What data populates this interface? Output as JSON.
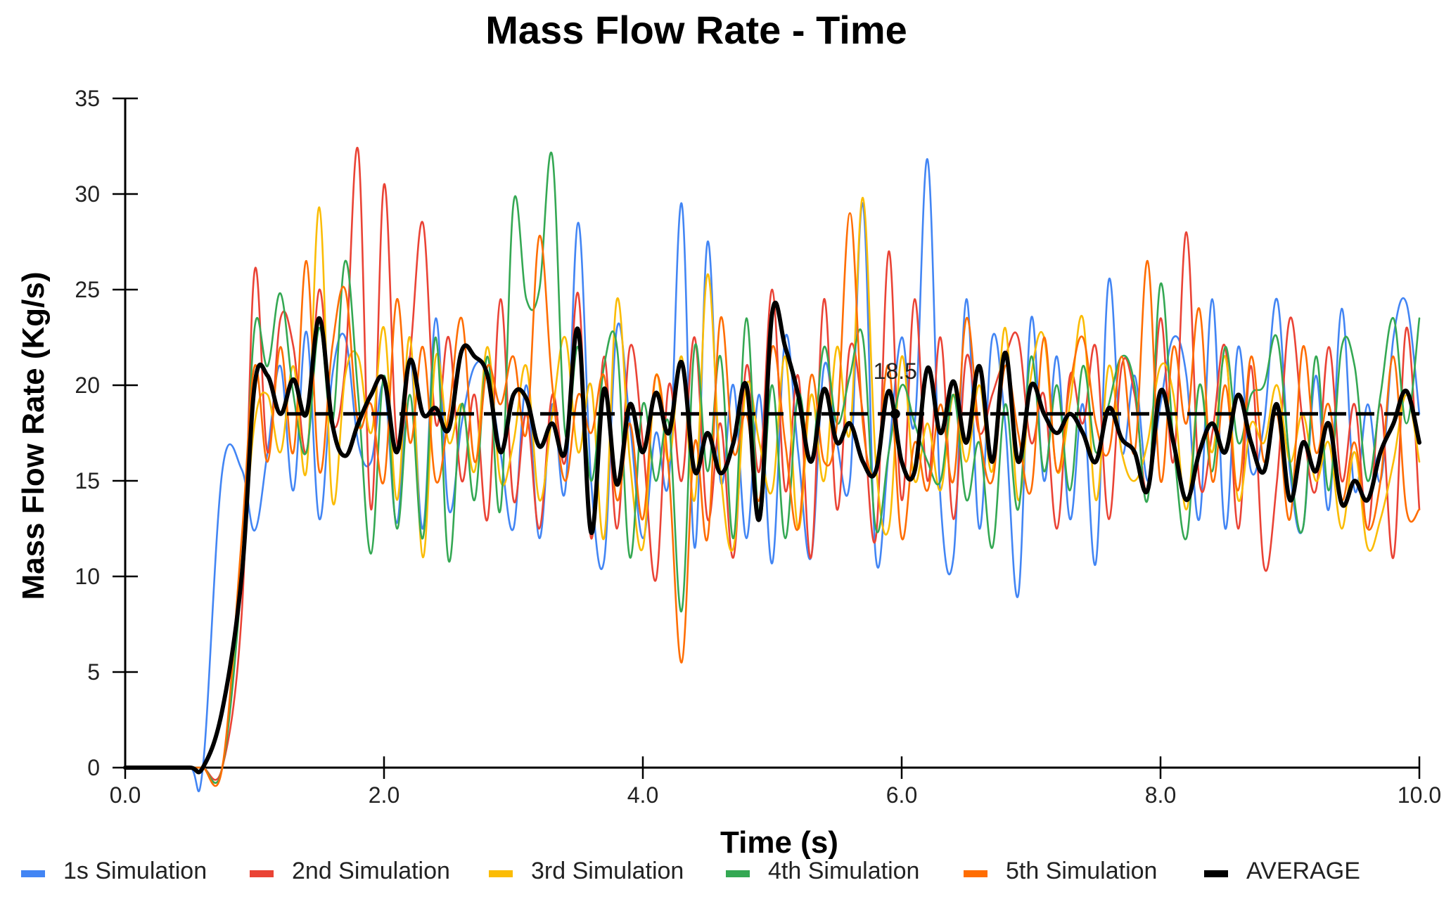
{
  "chart_data": {
    "type": "line",
    "title": "Mass Flow Rate - Time",
    "xlabel": "Time (s)",
    "ylabel": "Mass Flow Rate (Kg/s)",
    "xlim": [
      0,
      10
    ],
    "ylim": [
      0,
      35
    ],
    "xticks": [
      0,
      2,
      4,
      6,
      8,
      10
    ],
    "xtick_labels": [
      "0.0",
      "2.0",
      "4.0",
      "6.0",
      "8.0",
      "10.0"
    ],
    "yticks": [
      0,
      5,
      10,
      15,
      20,
      25,
      30,
      35
    ],
    "ytick_labels": [
      "0",
      "5",
      "10",
      "15",
      "20",
      "25",
      "30",
      "35"
    ],
    "grid": false,
    "legend_position": "bottom",
    "x": [
      0,
      0.25,
      0.5,
      0.6,
      0.75,
      0.9,
      1.0,
      1.1,
      1.2,
      1.3,
      1.4,
      1.5,
      1.6,
      1.7,
      1.8,
      1.9,
      2.0,
      2.1,
      2.2,
      2.3,
      2.4,
      2.5,
      2.6,
      2.7,
      2.8,
      2.9,
      3.0,
      3.1,
      3.2,
      3.3,
      3.4,
      3.5,
      3.6,
      3.7,
      3.8,
      3.9,
      4.0,
      4.1,
      4.2,
      4.3,
      4.4,
      4.5,
      4.6,
      4.7,
      4.8,
      4.9,
      5.0,
      5.1,
      5.2,
      5.3,
      5.4,
      5.5,
      5.6,
      5.7,
      5.8,
      5.9,
      6.0,
      6.1,
      6.2,
      6.3,
      6.4,
      6.5,
      6.6,
      6.7,
      6.8,
      6.9,
      7.0,
      7.1,
      7.2,
      7.3,
      7.4,
      7.5,
      7.6,
      7.7,
      7.8,
      7.9,
      8.0,
      8.1,
      8.2,
      8.3,
      8.4,
      8.5,
      8.6,
      8.7,
      8.8,
      8.9,
      9.0,
      9.1,
      9.2,
      9.3,
      9.4,
      9.5,
      9.6,
      9.7,
      9.8,
      9.9,
      10.0
    ],
    "series": [
      {
        "name": "1s Simulation",
        "color": "#4285F4",
        "values": [
          0,
          0,
          0,
          0,
          15.5,
          15.6,
          12.4,
          16.5,
          21.0,
          14.5,
          22.8,
          13.0,
          20.5,
          22.5,
          17.0,
          16.0,
          20.0,
          12.8,
          21.5,
          12.5,
          23.5,
          13.5,
          18.0,
          21.0,
          20.5,
          16.5,
          12.5,
          20.0,
          12.0,
          19.0,
          14.5,
          28.5,
          15.0,
          10.8,
          23.0,
          18.0,
          12.0,
          17.5,
          15.0,
          29.5,
          11.5,
          27.5,
          15.0,
          20.0,
          12.0,
          19.5,
          10.7,
          22.5,
          16.5,
          11.0,
          21.0,
          17.0,
          15.0,
          29.5,
          11.0,
          16.5,
          22.5,
          18.0,
          31.8,
          14.0,
          11.0,
          24.5,
          12.5,
          22.5,
          18.0,
          9.0,
          23.5,
          15.0,
          21.5,
          13.0,
          19.0,
          10.7,
          25.5,
          16.5,
          20.5,
          15.0,
          19.0,
          22.5,
          20.5,
          13.0,
          24.5,
          12.5,
          22.0,
          15.5,
          18.0,
          24.5,
          15.5,
          12.5,
          20.5,
          13.5,
          24.0,
          14.5,
          19.0,
          15.0,
          22.5,
          24.3,
          18.5
        ]
      },
      {
        "name": "2nd Simulation",
        "color": "#EA4335",
        "values": [
          0,
          0,
          0,
          0,
          0,
          8.0,
          26.0,
          16.5,
          23.5,
          22.0,
          16.5,
          25.0,
          18.0,
          21.0,
          32.3,
          13.5,
          30.5,
          17.0,
          21.5,
          28.5,
          18.0,
          22.5,
          15.0,
          19.5,
          13.0,
          24.5,
          14.0,
          18.5,
          12.5,
          19.5,
          16.0,
          24.8,
          12.0,
          21.5,
          12.5,
          22.0,
          17.0,
          9.8,
          20.0,
          15.0,
          22.5,
          13.0,
          18.0,
          11.0,
          21.0,
          15.5,
          25.0,
          14.5,
          20.5,
          11.0,
          24.5,
          13.5,
          22.0,
          18.5,
          12.0,
          27.0,
          14.0,
          24.5,
          15.0,
          22.5,
          13.0,
          21.5,
          17.5,
          19.5,
          21.5,
          22.5,
          17.0,
          19.5,
          12.5,
          20.5,
          18.0,
          22.0,
          13.0,
          21.0,
          19.5,
          14.5,
          23.5,
          16.0,
          28.0,
          15.0,
          17.5,
          22.0,
          12.5,
          21.0,
          10.5,
          15.0,
          23.5,
          18.0,
          14.5,
          22.0,
          15.0,
          19.0,
          12.5,
          19.0,
          11.0,
          23.0,
          13.5
        ]
      },
      {
        "name": "3rd Simulation",
        "color": "#FBBC04",
        "values": [
          0,
          0,
          0,
          0,
          0,
          10.0,
          18.0,
          19.5,
          16.5,
          21.0,
          15.5,
          29.3,
          14.0,
          20.5,
          21.5,
          17.5,
          23.0,
          14.0,
          22.5,
          11.0,
          21.5,
          17.0,
          19.0,
          15.5,
          22.0,
          15.0,
          17.0,
          21.0,
          14.0,
          18.5,
          22.5,
          16.5,
          20.0,
          12.0,
          24.5,
          16.0,
          11.5,
          20.5,
          16.0,
          21.5,
          14.0,
          25.8,
          15.5,
          11.5,
          20.0,
          17.0,
          14.5,
          21.5,
          12.5,
          19.5,
          15.0,
          22.0,
          17.5,
          29.8,
          16.0,
          12.5,
          21.5,
          15.0,
          18.0,
          14.5,
          19.5,
          16.0,
          20.0,
          15.5,
          23.0,
          14.0,
          20.5,
          22.5,
          15.5,
          19.0,
          23.5,
          14.0,
          21.0,
          16.5,
          15.0,
          17.0,
          21.0,
          19.5,
          13.5,
          20.0,
          16.5,
          21.5,
          14.0,
          18.0,
          17.0,
          20.0,
          16.0,
          18.5,
          15.0,
          17.0,
          12.5,
          16.5,
          11.5,
          13.0,
          16.0,
          19.5,
          16.0
        ]
      },
      {
        "name": "4th Simulation",
        "color": "#34A853",
        "values": [
          0,
          0,
          0,
          0,
          0,
          10.0,
          23.0,
          21.0,
          24.8,
          19.5,
          16.5,
          23.0,
          18.0,
          26.5,
          19.5,
          11.2,
          20.5,
          12.5,
          19.5,
          12.0,
          22.5,
          10.8,
          19.0,
          14.0,
          21.5,
          13.5,
          29.5,
          24.5,
          25.0,
          32.0,
          17.5,
          22.0,
          15.0,
          21.0,
          22.0,
          11.0,
          19.0,
          15.0,
          18.0,
          8.2,
          22.0,
          15.5,
          21.5,
          12.0,
          23.5,
          13.0,
          20.0,
          12.0,
          19.5,
          16.0,
          22.0,
          18.0,
          20.5,
          22.5,
          12.5,
          16.5,
          20.0,
          18.0,
          16.0,
          15.0,
          19.5,
          14.0,
          17.0,
          11.5,
          19.0,
          13.5,
          21.5,
          15.5,
          20.0,
          14.5,
          21.0,
          16.5,
          19.0,
          21.5,
          20.0,
          14.0,
          25.3,
          17.0,
          12.0,
          20.0,
          15.5,
          22.0,
          17.0,
          19.5,
          20.0,
          22.5,
          16.0,
          12.5,
          21.5,
          14.5,
          22.0,
          21.0,
          15.0,
          19.5,
          23.5,
          18.0,
          23.5
        ]
      },
      {
        "name": "5th Simulation",
        "color": "#FF6D01",
        "values": [
          0,
          0,
          0,
          0,
          0,
          12.0,
          21.0,
          16.0,
          22.0,
          16.5,
          26.5,
          15.5,
          22.0,
          25.0,
          18.0,
          19.0,
          15.0,
          24.5,
          17.0,
          22.0,
          15.0,
          18.5,
          23.5,
          16.0,
          21.0,
          19.0,
          21.5,
          17.5,
          27.8,
          20.0,
          15.0,
          19.5,
          17.5,
          20.5,
          14.0,
          18.0,
          13.0,
          20.5,
          15.5,
          5.5,
          17.0,
          12.0,
          23.5,
          16.5,
          18.5,
          14.0,
          22.0,
          17.0,
          12.5,
          20.5,
          16.0,
          18.0,
          29.0,
          18.0,
          15.5,
          21.0,
          12.0,
          17.0,
          14.5,
          19.0,
          15.0,
          23.5,
          17.5,
          15.0,
          21.0,
          17.5,
          14.5,
          22.5,
          15.5,
          20.0,
          22.5,
          18.0,
          16.5,
          21.5,
          16.5,
          26.5,
          15.0,
          22.0,
          18.0,
          24.0,
          15.0,
          20.0,
          14.5,
          21.5,
          16.0,
          18.5,
          13.0,
          22.0,
          16.5,
          19.0,
          14.0,
          17.0,
          12.5,
          15.0,
          21.5,
          13.5,
          13.5
        ]
      },
      {
        "name": "AVERAGE",
        "color": "#000000",
        "values": [
          0,
          0,
          0,
          0,
          3.0,
          10.0,
          20.0,
          20.5,
          18.5,
          20.3,
          18.5,
          23.5,
          18.0,
          16.3,
          18.0,
          19.5,
          20.3,
          16.5,
          21.3,
          18.5,
          18.8,
          17.7,
          21.8,
          21.5,
          20.5,
          16.5,
          19.5,
          19.3,
          16.8,
          18.0,
          16.5,
          22.9,
          12.3,
          19.8,
          14.8,
          19.0,
          16.5,
          19.6,
          17.5,
          21.2,
          15.5,
          17.5,
          15.4,
          17.0,
          20.0,
          13.0,
          23.8,
          22.0,
          19.5,
          16.0,
          19.8,
          17.0,
          18.0,
          16.0,
          15.5,
          19.7,
          16.0,
          15.5,
          20.9,
          17.5,
          20.2,
          17.0,
          21.0,
          16.0,
          21.7,
          16.0,
          20.0,
          18.5,
          17.5,
          18.5,
          17.5,
          16.0,
          18.8,
          17.2,
          16.5,
          14.5,
          19.7,
          17.0,
          14.0,
          16.5,
          18.0,
          16.5,
          19.5,
          17.0,
          15.5,
          19.0,
          14.0,
          17.0,
          15.5,
          18.0,
          13.8,
          15.0,
          14.0,
          16.5,
          18.0,
          19.7,
          17.0
        ]
      }
    ],
    "reference_line": {
      "name": "AVERAGE mean",
      "value": 18.5,
      "x_start": 1.25,
      "x_end": 10.0,
      "style": "dashed",
      "color": "#000000"
    },
    "annotations": [
      {
        "text": "18.5",
        "x": 5.95,
        "y": 18.5
      }
    ]
  }
}
